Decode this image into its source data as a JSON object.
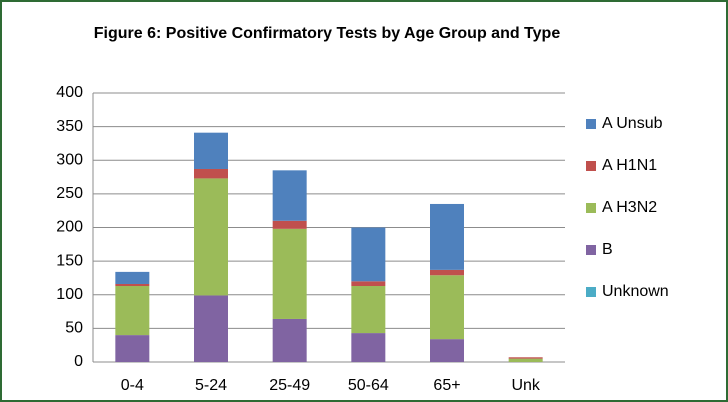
{
  "chart_data": {
    "type": "stacked_bar",
    "title": "Figure 6:  Positive Confirmatory Tests by Age Group and Type",
    "categories": [
      "0-4",
      "5-24",
      "25-49",
      "50-64",
      "65+",
      "Unk"
    ],
    "series": [
      {
        "name": "Unknown",
        "color": "#4bacc6",
        "values": [
          0,
          0,
          0,
          0,
          0,
          0
        ]
      },
      {
        "name": "B",
        "color": "#8064a2",
        "values": [
          40,
          99,
          64,
          43,
          34,
          0
        ]
      },
      {
        "name": "A H3N2",
        "color": "#9bbb59",
        "values": [
          73,
          174,
          134,
          70,
          95,
          5
        ]
      },
      {
        "name": "A H1N1",
        "color": "#c0504d",
        "values": [
          3,
          14,
          12,
          7,
          8,
          2
        ]
      },
      {
        "name": "A Unsub",
        "color": "#4f81bd",
        "values": [
          18,
          54,
          75,
          80,
          98,
          0
        ]
      }
    ],
    "ylim": [
      0,
      400
    ],
    "yticks": [
      0,
      50,
      100,
      150,
      200,
      250,
      300,
      350,
      400
    ],
    "grid": true
  }
}
